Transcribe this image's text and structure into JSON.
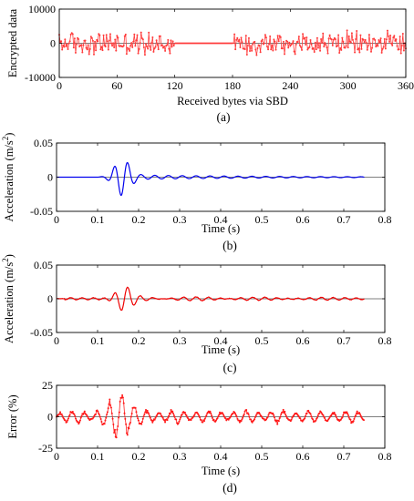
{
  "chart_data": [
    {
      "panel": "a",
      "type": "line",
      "signal": "encrypted-bytes",
      "caption": "(a)",
      "xlabel": "Received bytes via SBD",
      "ylabel": "Encrypted data",
      "xlim": [
        0,
        360
      ],
      "ylim": [
        -10000,
        10000
      ],
      "xticks": [
        0,
        60,
        120,
        180,
        240,
        300,
        360
      ],
      "xtick_labels": [
        "0",
        "60",
        "120",
        "180",
        "240",
        "300",
        "360"
      ],
      "yticks": [
        -10000,
        0,
        10000
      ],
      "ytick_labels": [
        "-10000",
        "0",
        "10000"
      ],
      "zero_segment": [
        120,
        180
      ],
      "amplitude": 4000,
      "markers": true,
      "color": "#ff3b3b",
      "grid": false
    },
    {
      "panel": "b",
      "type": "line",
      "signal": "chirp-original",
      "caption": "(b)",
      "xlabel": "Time (s)",
      "ylabel": "Acceleration (m/s",
      "ylabel_sup": "2",
      "ylabel_close": ")",
      "xlim": [
        0,
        0.8
      ],
      "ylim": [
        -0.05,
        0.05
      ],
      "xticks": [
        0,
        0.1,
        0.2,
        0.3,
        0.4,
        0.5,
        0.6,
        0.7,
        0.8
      ],
      "xtick_labels": [
        "0",
        "0.1",
        "0.2",
        "0.3",
        "0.4",
        "0.5",
        "0.6",
        "0.7",
        "0.8"
      ],
      "yticks": [
        -0.05,
        0,
        0.05
      ],
      "ytick_labels": [
        "-0.05",
        "0",
        "0.05"
      ],
      "x_end": 0.75,
      "peak_time": 0.16,
      "peak_amplitude": 0.025,
      "color": "#0000ee",
      "grid": false
    },
    {
      "panel": "c",
      "type": "line",
      "signal": "chirp-received",
      "caption": "(c)",
      "xlabel": "Time (s)",
      "ylabel": "Acceleration (m/s",
      "ylabel_sup": "2",
      "ylabel_close": ")",
      "xlim": [
        0,
        0.8
      ],
      "ylim": [
        -0.05,
        0.05
      ],
      "xticks": [
        0,
        0.1,
        0.2,
        0.3,
        0.4,
        0.5,
        0.6,
        0.7,
        0.8
      ],
      "xtick_labels": [
        "0",
        "0.1",
        "0.2",
        "0.3",
        "0.4",
        "0.5",
        "0.6",
        "0.7",
        "0.8"
      ],
      "yticks": [
        -0.05,
        0,
        0.05
      ],
      "ytick_labels": [
        "-0.05",
        "0",
        "0.05"
      ],
      "x_end": 0.75,
      "peak_time": 0.165,
      "peak_amplitude": 0.016,
      "color": "#ee0000",
      "grid": false
    },
    {
      "panel": "d",
      "type": "line",
      "signal": "error-percent",
      "caption": "(d)",
      "xlabel": "Time (s)",
      "ylabel": "Error (%)",
      "xlim": [
        0,
        0.8
      ],
      "ylim": [
        -25,
        25
      ],
      "xticks": [
        0,
        0.1,
        0.2,
        0.3,
        0.4,
        0.5,
        0.6,
        0.7,
        0.8
      ],
      "xtick_labels": [
        "0",
        "0.1",
        "0.2",
        "0.3",
        "0.4",
        "0.5",
        "0.6",
        "0.7",
        "0.8"
      ],
      "yticks": [
        -25,
        0,
        25
      ],
      "ytick_labels": [
        "-25",
        "0",
        "25"
      ],
      "x_end": 0.75,
      "peak_time": 0.155,
      "peak_amplitude": 18,
      "markers": true,
      "color": "#ff1a1a",
      "grid": false
    }
  ]
}
